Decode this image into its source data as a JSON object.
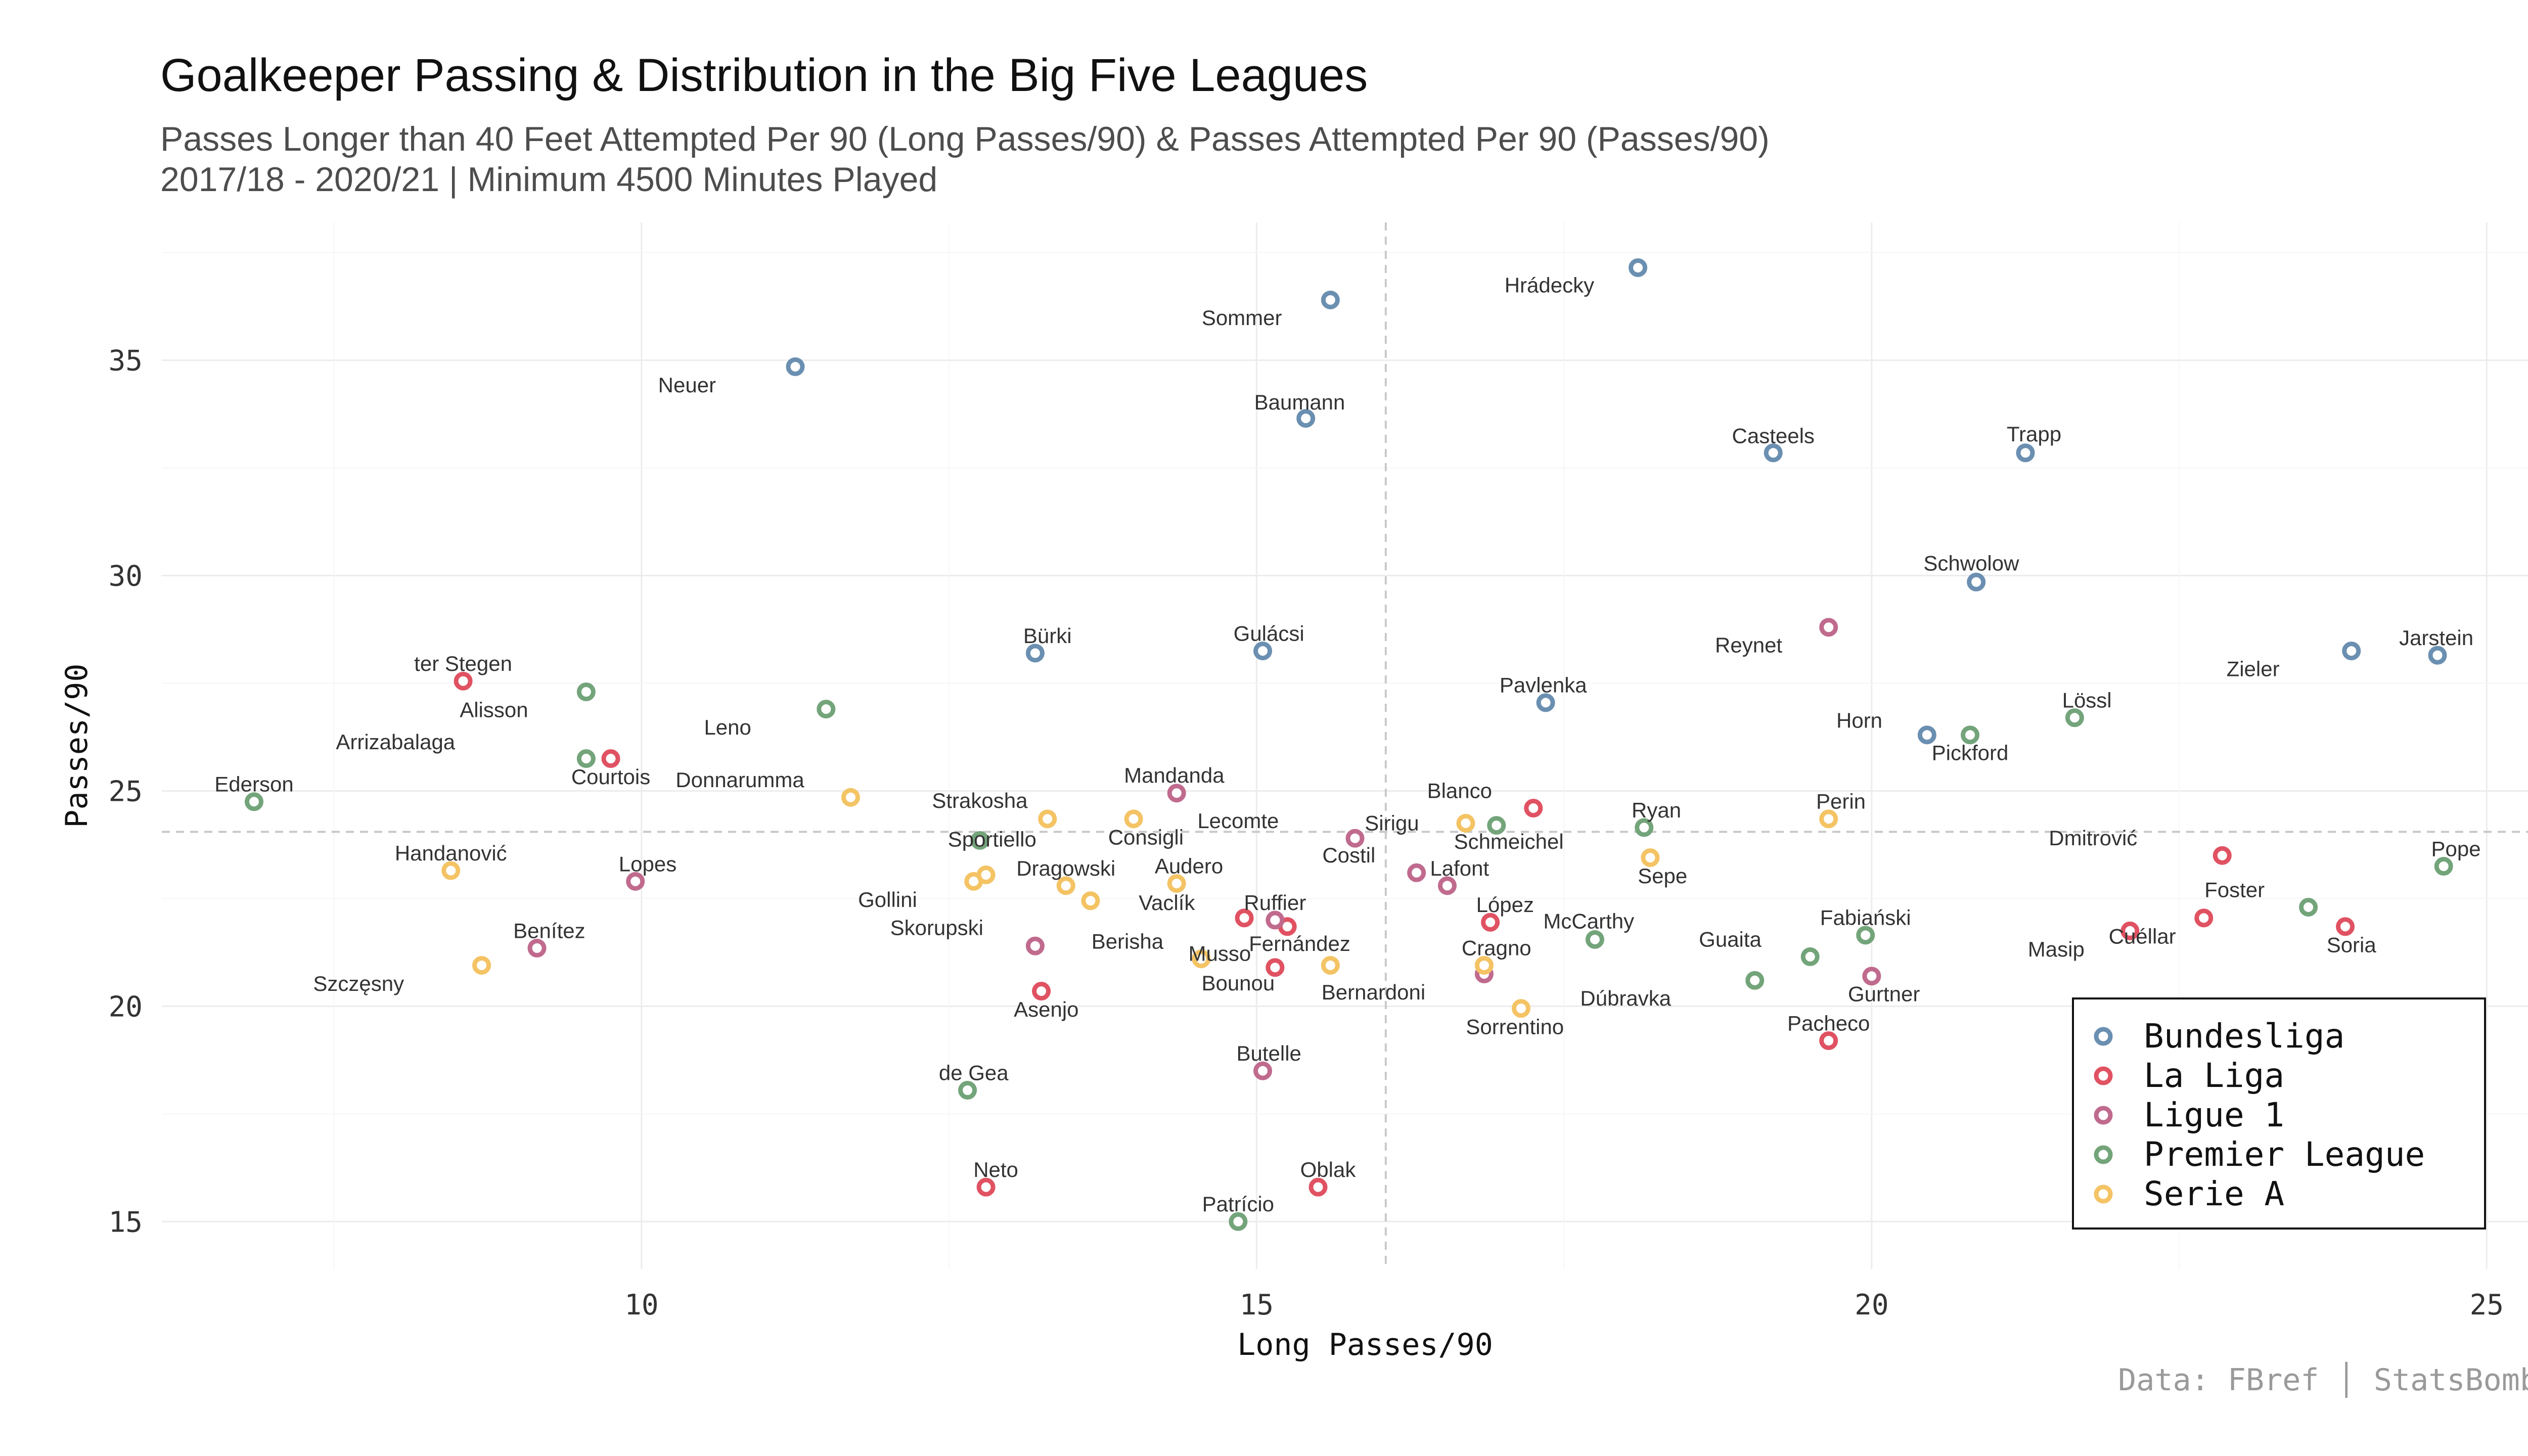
{
  "title": "Goalkeeper Passing & Distribution in the Big Five Leagues",
  "subtitle_line1": "Passes Longer than 40 Feet Attempted Per 90 (Long Passes/90) & Passes Attempted Per 90 (Passes/90)",
  "subtitle_line2": "2017/18 - 2020/21 | Minimum 4500 Minutes Played",
  "caption": "Data: FBref │ StatsBomb",
  "colors": {
    "Bundesliga": "#6a8fb1",
    "La Liga": "#e05262",
    "Ligue 1": "#c06a8e",
    "Premier League": "#73a47a",
    "Serie A": "#f4c364",
    "grid": "#ececec",
    "reference": "#c8c8c8"
  },
  "chart_data": {
    "type": "scatter",
    "xlabel": "Long Passes/90",
    "ylabel": "Passes/90",
    "xlim": [
      6.1,
      25.5
    ],
    "ylim": [
      13.9,
      38.2
    ],
    "xticks": [
      10,
      15,
      20,
      25
    ],
    "yticks": [
      15,
      20,
      25,
      30,
      35
    ],
    "grid": true,
    "legend_position": "bottom-right",
    "reference_lines": {
      "x": 16.05,
      "y": 24.05
    },
    "series": [
      {
        "name": "Bundesliga",
        "points": [
          {
            "label": "Hrádecky",
            "x": 18.1,
            "y": 37.15
          },
          {
            "label": "Sommer",
            "x": 15.6,
            "y": 36.4
          },
          {
            "label": "Neuer",
            "x": 11.25,
            "y": 34.85
          },
          {
            "label": "Baumann",
            "x": 15.4,
            "y": 33.65
          },
          {
            "label": "Casteels",
            "x": 19.2,
            "y": 32.85
          },
          {
            "label": "Trapp",
            "x": 21.25,
            "y": 32.85
          },
          {
            "label": "Schwolow",
            "x": 20.85,
            "y": 29.85
          },
          {
            "label": "Zieler",
            "x": 23.9,
            "y": 28.25
          },
          {
            "label": "Jarstein",
            "x": 24.6,
            "y": 28.15
          },
          {
            "label": "Bürki",
            "x": 13.2,
            "y": 28.2
          },
          {
            "label": "Gulácsi",
            "x": 15.05,
            "y": 28.25
          },
          {
            "label": "Pavlenka",
            "x": 17.35,
            "y": 27.05
          },
          {
            "label": "Horn",
            "x": 20.45,
            "y": 26.3
          }
        ]
      },
      {
        "name": "La Liga",
        "points": [
          {
            "label": "ter Stegen",
            "x": 8.55,
            "y": 27.55
          },
          {
            "label": "Courtois",
            "x": 9.75,
            "y": 25.75
          },
          {
            "label": "Blanco",
            "x": 17.25,
            "y": 24.6
          },
          {
            "label": "Dmitrović",
            "x": 22.85,
            "y": 23.5
          },
          {
            "label": "López",
            "x": 16.9,
            "y": 21.95
          },
          {
            "label": "Vaclík",
            "x": 14.9,
            "y": 22.05
          },
          {
            "label": "Fernández",
            "x": 15.25,
            "y": 21.85
          },
          {
            "label": "Musso",
            "x": 15.15,
            "y": 20.9
          },
          {
            "label": "Asenjo",
            "x": 13.25,
            "y": 20.35
          },
          {
            "label": "Masip",
            "x": 22.1,
            "y": 21.75
          },
          {
            "label": "Cuéllar",
            "x": 22.7,
            "y": 22.05
          },
          {
            "label": "Soria",
            "x": 23.85,
            "y": 21.85
          },
          {
            "label": "Pacheco",
            "x": 19.65,
            "y": 19.2
          },
          {
            "label": "Neto",
            "x": 12.8,
            "y": 15.8
          },
          {
            "label": "Oblak",
            "x": 15.5,
            "y": 15.8
          }
        ]
      },
      {
        "name": "Ligue 1",
        "points": [
          {
            "label": "Reynet",
            "x": 19.65,
            "y": 28.8
          },
          {
            "label": "Mandanda",
            "x": 14.35,
            "y": 24.95
          },
          {
            "label": "Lecomte",
            "x": 15.8,
            "y": 23.9
          },
          {
            "label": "Costil",
            "x": 16.3,
            "y": 23.1
          },
          {
            "label": "Lafont",
            "x": 16.55,
            "y": 22.8
          },
          {
            "label": "Lopes",
            "x": 9.95,
            "y": 22.9
          },
          {
            "label": "Benítez",
            "x": 9.15,
            "y": 21.35
          },
          {
            "label": "Skorupski",
            "x": 13.2,
            "y": 21.4
          },
          {
            "label": "Ruffier",
            "x": 15.15,
            "y": 22.0
          },
          {
            "label": "Bernardoni",
            "x": 16.85,
            "y": 20.75
          },
          {
            "label": "Gurtner",
            "x": 20.0,
            "y": 20.7
          },
          {
            "label": "Butelle",
            "x": 15.05,
            "y": 18.5
          }
        ]
      },
      {
        "name": "Premier League",
        "points": [
          {
            "label": "Alisson",
            "x": 9.55,
            "y": 27.3
          },
          {
            "label": "Leno",
            "x": 11.5,
            "y": 26.9
          },
          {
            "label": "Arrizabalaga",
            "x": 9.55,
            "y": 25.75
          },
          {
            "label": "Ederson",
            "x": 6.85,
            "y": 24.75
          },
          {
            "label": "Pickford",
            "x": 20.8,
            "y": 26.3
          },
          {
            "label": "Lössl",
            "x": 21.65,
            "y": 26.7
          },
          {
            "label": "Schmeichel",
            "x": 16.95,
            "y": 24.2
          },
          {
            "label": "Ryan",
            "x": 18.15,
            "y": 24.15
          },
          {
            "label": "Sportiello",
            "x": 12.75,
            "y": 23.85
          },
          {
            "label": "McCarthy",
            "x": 17.75,
            "y": 21.55
          },
          {
            "label": "Guaita",
            "x": 19.5,
            "y": 21.15
          },
          {
            "label": "Fabiański",
            "x": 19.95,
            "y": 21.65
          },
          {
            "label": "Dúbravka",
            "x": 19.05,
            "y": 20.6
          },
          {
            "label": "Foster",
            "x": 23.55,
            "y": 22.3
          },
          {
            "label": "Pope",
            "x": 24.65,
            "y": 23.25
          },
          {
            "label": "de Gea",
            "x": 12.65,
            "y": 18.05
          },
          {
            "label": "Patrício",
            "x": 14.85,
            "y": 15.0
          }
        ]
      },
      {
        "name": "Serie A",
        "points": [
          {
            "label": "Donnarumma",
            "x": 11.7,
            "y": 24.85
          },
          {
            "label": "Strakosha",
            "x": 13.3,
            "y": 24.35
          },
          {
            "label": "Consigli",
            "x": 14.0,
            "y": 24.35
          },
          {
            "label": "Perin",
            "x": 19.65,
            "y": 24.35
          },
          {
            "label": "Handanović",
            "x": 8.45,
            "y": 23.15
          },
          {
            "label": "Sepe",
            "x": 18.2,
            "y": 23.45
          },
          {
            "label": "Gollini",
            "x": 12.7,
            "y": 22.9
          },
          {
            "label": "Gollini",
            "x": 12.8,
            "y": 23.05
          },
          {
            "label": "Dragowski",
            "x": 13.45,
            "y": 22.8
          },
          {
            "label": "Dragowski",
            "x": 13.65,
            "y": 22.45
          },
          {
            "label": "Audero",
            "x": 14.35,
            "y": 22.85
          },
          {
            "label": "Sirigu",
            "x": 16.7,
            "y": 24.25
          },
          {
            "label": "Berisha",
            "x": 14.55,
            "y": 21.1
          },
          {
            "label": "Bounou",
            "x": 15.6,
            "y": 20.95
          },
          {
            "label": "Cragno",
            "x": 16.85,
            "y": 20.95
          },
          {
            "label": "Sorrentino",
            "x": 17.15,
            "y": 19.95
          },
          {
            "label": "Szczęsny",
            "x": 8.7,
            "y": 20.95
          }
        ]
      }
    ],
    "labels": [
      {
        "text": "Hrádecky",
        "x": 17.38,
        "y": 36.74
      },
      {
        "text": "Sommer",
        "x": 14.88,
        "y": 35.98
      },
      {
        "text": "Neuer",
        "x": 10.37,
        "y": 34.42
      },
      {
        "text": "Baumann",
        "x": 15.35,
        "y": 34.02
      },
      {
        "text": "Casteels",
        "x": 19.2,
        "y": 33.24
      },
      {
        "text": "Trapp",
        "x": 21.32,
        "y": 33.28
      },
      {
        "text": "Schwolow",
        "x": 20.81,
        "y": 30.28
      },
      {
        "text": "Zieler",
        "x": 23.1,
        "y": 27.83
      },
      {
        "text": "Jarstein",
        "x": 24.59,
        "y": 28.55
      },
      {
        "text": "Bürki",
        "x": 13.3,
        "y": 28.6
      },
      {
        "text": "Gulácsi",
        "x": 15.1,
        "y": 28.65
      },
      {
        "text": "Pavlenka",
        "x": 17.33,
        "y": 27.45
      },
      {
        "text": "Horn",
        "x": 19.9,
        "y": 26.63
      },
      {
        "text": "ter Stegen",
        "x": 8.55,
        "y": 27.95
      },
      {
        "text": "Courtois",
        "x": 9.75,
        "y": 25.32
      },
      {
        "text": "Blanco",
        "x": 16.65,
        "y": 25.0
      },
      {
        "text": "Dmitrović",
        "x": 21.8,
        "y": 23.9
      },
      {
        "text": "López",
        "x": 17.02,
        "y": 22.35
      },
      {
        "text": "Vaclík",
        "x": 14.27,
        "y": 22.4
      },
      {
        "text": "Fernández",
        "x": 15.35,
        "y": 21.45
      },
      {
        "text": "Musso",
        "x": 14.7,
        "y": 21.22
      },
      {
        "text": "Asenjo",
        "x": 13.29,
        "y": 19.92
      },
      {
        "text": "Masip",
        "x": 21.5,
        "y": 21.32
      },
      {
        "text": "Cuéllar",
        "x": 22.2,
        "y": 21.62
      },
      {
        "text": "Soria",
        "x": 23.9,
        "y": 21.42
      },
      {
        "text": "Pacheco",
        "x": 19.65,
        "y": 19.6
      },
      {
        "text": "Neto",
        "x": 12.88,
        "y": 16.2
      },
      {
        "text": "Oblak",
        "x": 15.58,
        "y": 16.2
      },
      {
        "text": "Reynet",
        "x": 19.0,
        "y": 28.38
      },
      {
        "text": "Mandanda",
        "x": 14.33,
        "y": 25.36
      },
      {
        "text": "Lecomte",
        "x": 14.85,
        "y": 24.3
      },
      {
        "text": "Costil",
        "x": 15.75,
        "y": 23.5
      },
      {
        "text": "Lafont",
        "x": 16.65,
        "y": 23.2
      },
      {
        "text": "Lopes",
        "x": 10.05,
        "y": 23.3
      },
      {
        "text": "Benítez",
        "x": 9.25,
        "y": 21.75
      },
      {
        "text": "Skorupski",
        "x": 12.4,
        "y": 21.82
      },
      {
        "text": "Ruffier",
        "x": 15.15,
        "y": 22.4
      },
      {
        "text": "Bernardoni",
        "x": 15.95,
        "y": 20.32
      },
      {
        "text": "Gurtner",
        "x": 20.1,
        "y": 20.28
      },
      {
        "text": "Butelle",
        "x": 15.1,
        "y": 18.9
      },
      {
        "text": "Alisson",
        "x": 8.8,
        "y": 26.88
      },
      {
        "text": "Leno",
        "x": 10.7,
        "y": 26.47
      },
      {
        "text": "Arrizabalaga",
        "x": 8.0,
        "y": 26.13
      },
      {
        "text": "Ederson",
        "x": 6.85,
        "y": 25.15
      },
      {
        "text": "Pickford",
        "x": 20.8,
        "y": 25.88
      },
      {
        "text": "Lössl",
        "x": 21.75,
        "y": 27.1
      },
      {
        "text": "Schmeichel",
        "x": 17.05,
        "y": 23.82
      },
      {
        "text": "Ryan",
        "x": 18.25,
        "y": 24.55
      },
      {
        "text": "Sportiello",
        "x": 12.85,
        "y": 23.87
      },
      {
        "text": "McCarthy",
        "x": 17.7,
        "y": 21.97
      },
      {
        "text": "Guaita",
        "x": 18.85,
        "y": 21.55
      },
      {
        "text": "Fabiański",
        "x": 19.95,
        "y": 22.05
      },
      {
        "text": "Dúbravka",
        "x": 18.0,
        "y": 20.18
      },
      {
        "text": "Foster",
        "x": 22.95,
        "y": 22.7
      },
      {
        "text": "Pope",
        "x": 24.75,
        "y": 23.65
      },
      {
        "text": "de Gea",
        "x": 12.7,
        "y": 18.45
      },
      {
        "text": "Patrício",
        "x": 14.85,
        "y": 15.4
      },
      {
        "text": "Donnarumma",
        "x": 10.8,
        "y": 25.25
      },
      {
        "text": "Strakosha",
        "x": 12.75,
        "y": 24.77
      },
      {
        "text": "Consigli",
        "x": 14.1,
        "y": 23.92
      },
      {
        "text": "Perin",
        "x": 19.75,
        "y": 24.75
      },
      {
        "text": "Handanović",
        "x": 8.45,
        "y": 23.55
      },
      {
        "text": "Sepe",
        "x": 18.3,
        "y": 23.02
      },
      {
        "text": "Gollini",
        "x": 12.0,
        "y": 22.47
      },
      {
        "text": "Dragowski",
        "x": 13.45,
        "y": 23.2
      },
      {
        "text": "Audero",
        "x": 14.45,
        "y": 23.25
      },
      {
        "text": "Sirigu",
        "x": 16.1,
        "y": 24.25
      },
      {
        "text": "Berisha",
        "x": 13.95,
        "y": 21.5
      },
      {
        "text": "Bounou",
        "x": 14.85,
        "y": 20.53
      },
      {
        "text": "Cragno",
        "x": 16.95,
        "y": 21.35
      },
      {
        "text": "Sorrentino",
        "x": 17.1,
        "y": 19.52
      },
      {
        "text": "Szczęsny",
        "x": 7.7,
        "y": 20.52
      }
    ]
  }
}
